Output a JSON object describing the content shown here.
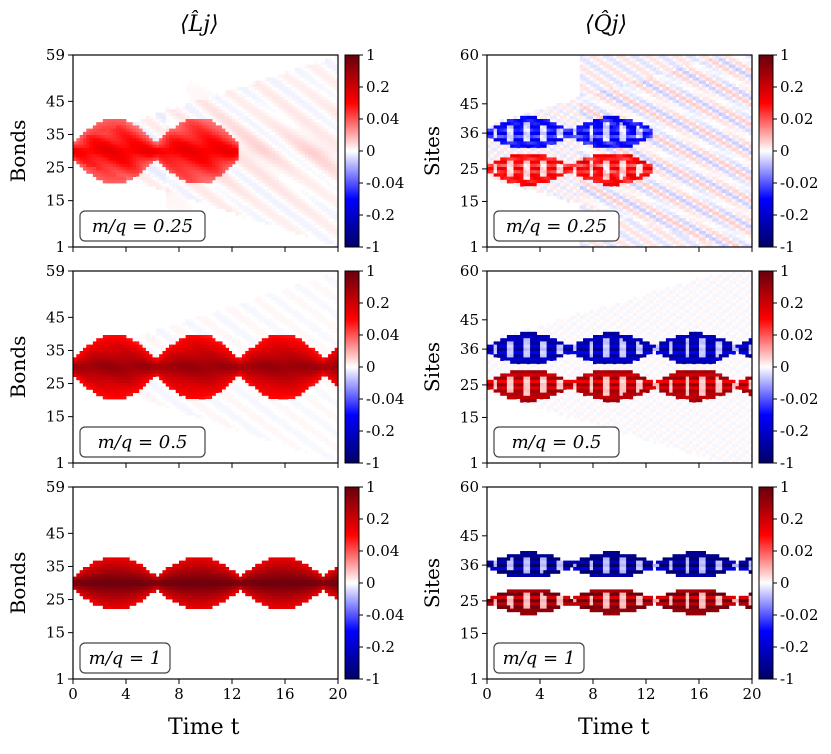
{
  "figure": {
    "col_titles": [
      "⟨L̂j⟩",
      "⟨Q̂j⟩"
    ],
    "xlabel": "Time t"
  },
  "colors": {
    "dark_red": "#67000d",
    "red": "#ff0000",
    "white": "#ffffff",
    "blue": "#0000ff",
    "dark_blue": "#000066",
    "frame": "#000000"
  },
  "chart_data": [
    {
      "type": "heatmap",
      "column": "L",
      "row": 0,
      "ylabel": "Bonds",
      "annotation": "m/q = 0.25",
      "xlim": [
        0,
        20
      ],
      "ylim": [
        1,
        59
      ],
      "xticks": [
        "0",
        "4",
        "8",
        "12",
        "16",
        "20"
      ],
      "yticks": [
        "1",
        "15",
        "25",
        "35",
        "45",
        "59"
      ],
      "ytick_values": [
        1,
        15,
        25,
        35,
        45,
        59
      ],
      "colorbar_ticks": [
        "1",
        "0.2",
        "0.04",
        "0",
        "-0.04",
        "-0.2",
        "-1"
      ],
      "pattern": {
        "center": 30,
        "lobe_period": 6.3,
        "max_half_width": 10,
        "intensity": 0.55,
        "decay_after": 7,
        "lobes": 2
      }
    },
    {
      "type": "heatmap",
      "column": "Q",
      "row": 0,
      "ylabel": "Sites",
      "annotation": "m/q = 0.25",
      "xlim": [
        0,
        20
      ],
      "ylim": [
        1,
        60
      ],
      "xticks": [
        "0",
        "4",
        "8",
        "12",
        "16",
        "20"
      ],
      "yticks": [
        "1",
        "15",
        "25",
        "36",
        "45",
        "60"
      ],
      "ytick_values": [
        1,
        15,
        25,
        36,
        45,
        60
      ],
      "colorbar_ticks": [
        "1",
        "0.2",
        "0.02",
        "0",
        "-0.02",
        "-0.2",
        "-1"
      ],
      "pattern": {
        "upper": 36,
        "lower": 25,
        "lobe_period": 6.3,
        "max_half_width": 5,
        "intensity": 0.55,
        "decay_after": 7,
        "lobes": 2
      }
    },
    {
      "type": "heatmap",
      "column": "L",
      "row": 1,
      "ylabel": "Bonds",
      "annotation": "m/q = 0.5",
      "xlim": [
        0,
        20
      ],
      "ylim": [
        1,
        59
      ],
      "xticks": [
        "0",
        "4",
        "8",
        "12",
        "16",
        "20"
      ],
      "yticks": [
        "1",
        "15",
        "25",
        "35",
        "45",
        "59"
      ],
      "ytick_values": [
        1,
        15,
        25,
        35,
        45,
        59
      ],
      "colorbar_ticks": [
        "1",
        "0.2",
        "0.04",
        "0",
        "-0.04",
        "-0.2",
        "-1"
      ],
      "pattern": {
        "center": 30,
        "lobe_period": 6.3,
        "max_half_width": 10,
        "intensity": 0.85,
        "decay_after": 20,
        "lobes": 4
      }
    },
    {
      "type": "heatmap",
      "column": "Q",
      "row": 1,
      "ylabel": "Sites",
      "annotation": "m/q = 0.5",
      "xlim": [
        0,
        20
      ],
      "ylim": [
        1,
        60
      ],
      "xticks": [
        "0",
        "4",
        "8",
        "12",
        "16",
        "20"
      ],
      "yticks": [
        "1",
        "15",
        "25",
        "36",
        "45",
        "60"
      ],
      "ytick_values": [
        1,
        15,
        25,
        36,
        45,
        60
      ],
      "colorbar_ticks": [
        "1",
        "0.2",
        "0.02",
        "0",
        "-0.02",
        "-0.2",
        "-1"
      ],
      "pattern": {
        "upper": 36,
        "lower": 25,
        "lobe_period": 6.3,
        "max_half_width": 5,
        "intensity": 0.85,
        "decay_after": 20,
        "lobes": 4
      }
    },
    {
      "type": "heatmap",
      "column": "L",
      "row": 2,
      "ylabel": "Bonds",
      "annotation": "m/q = 1",
      "xlim": [
        0,
        20
      ],
      "ylim": [
        1,
        59
      ],
      "xticks": [
        "0",
        "4",
        "8",
        "12",
        "16",
        "20"
      ],
      "yticks": [
        "1",
        "15",
        "25",
        "35",
        "45",
        "59"
      ],
      "ytick_values": [
        1,
        15,
        25,
        35,
        45,
        59
      ],
      "colorbar_ticks": [
        "1",
        "0.2",
        "0.04",
        "0",
        "-0.04",
        "-0.2",
        "-1"
      ],
      "pattern": {
        "center": 30,
        "lobe_period": 6.3,
        "max_half_width": 8,
        "intensity": 1.0,
        "decay_after": 20,
        "lobes": 4
      }
    },
    {
      "type": "heatmap",
      "column": "Q",
      "row": 2,
      "ylabel": "Sites",
      "annotation": "m/q = 1",
      "xlim": [
        0,
        20
      ],
      "ylim": [
        1,
        60
      ],
      "xticks": [
        "0",
        "4",
        "8",
        "12",
        "16",
        "20"
      ],
      "yticks": [
        "1",
        "15",
        "25",
        "36",
        "45",
        "60"
      ],
      "ytick_values": [
        1,
        15,
        25,
        36,
        45,
        60
      ],
      "colorbar_ticks": [
        "1",
        "0.2",
        "0.02",
        "0",
        "-0.02",
        "-0.2",
        "-1"
      ],
      "pattern": {
        "upper": 36,
        "lower": 25,
        "lobe_period": 6.3,
        "max_half_width": 4,
        "intensity": 1.0,
        "decay_after": 20,
        "lobes": 4
      }
    }
  ]
}
